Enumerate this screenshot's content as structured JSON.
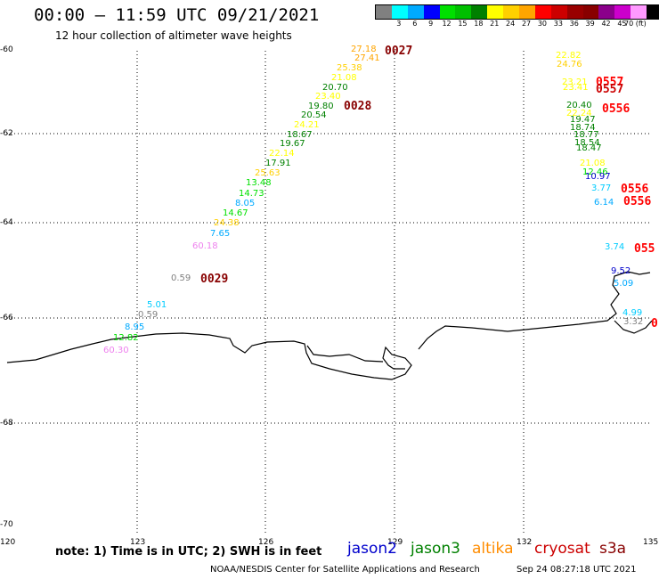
{
  "header": {
    "title": "00:00 – 11:59 UTC 09/21/2021",
    "subtitle": "12 hour collection of altimeter wave heights"
  },
  "legend": {
    "colors": [
      "#808080",
      "#00ffff",
      "#00aaff",
      "#0000ff",
      "#00e000",
      "#00c000",
      "#008000",
      "#ffff00",
      "#ffd000",
      "#ffa500",
      "#ff0000",
      "#cc0000",
      "#990000",
      "#880000",
      "#8b008b",
      "#cc00cc",
      "#ff99ff",
      "#000000"
    ],
    "labels": [
      "3",
      "6",
      "9",
      "12",
      "15",
      "18",
      "21",
      "24",
      "27",
      "30",
      "33",
      "36",
      "39",
      "42",
      "45",
      "70 (ft)"
    ]
  },
  "axes": {
    "y_ticks": [
      "-60",
      "-62",
      "-64",
      "-66",
      "-68",
      "-70"
    ],
    "x_ticks": [
      "120",
      "123",
      "126",
      "129",
      "132",
      "135"
    ]
  },
  "footer": {
    "note": "note: 1) Time is in UTC; 2) SWH is in feet",
    "satellites": [
      {
        "name": "jason2",
        "color": "#0000cc"
      },
      {
        "name": "jason3",
        "color": "#008000"
      },
      {
        "name": "altika",
        "color": "#ff8c00"
      },
      {
        "name": "cryosat",
        "color": "#cc0000"
      },
      {
        "name": "s3a",
        "color": "#880000"
      }
    ],
    "credit": "NOAA/NESDIS Center for Satellite Applications and Research",
    "generated": "Sep 24 08:27:18 UTC 2021"
  },
  "wave_heights": [
    {
      "text": "27.18",
      "color": "#ffa500"
    },
    {
      "text": "27.41",
      "color": "#ffa500"
    },
    {
      "text": "25.38",
      "color": "#ffd000"
    },
    {
      "text": "21.08",
      "color": "#ffff00"
    },
    {
      "text": "20.70",
      "color": "#008000"
    },
    {
      "text": "23.40",
      "color": "#ffff00"
    },
    {
      "text": "19.80",
      "color": "#008000"
    },
    {
      "text": "20.54",
      "color": "#008000"
    },
    {
      "text": "18.67",
      "color": "#008000"
    },
    {
      "text": "24.21",
      "color": "#ffff00"
    },
    {
      "text": "19.67",
      "color": "#008000"
    },
    {
      "text": "22.14",
      "color": "#ffff00"
    },
    {
      "text": "17.91",
      "color": "#008000"
    },
    {
      "text": "25.63",
      "color": "#ffd000"
    },
    {
      "text": "13.48",
      "color": "#00e000"
    },
    {
      "text": "14.73",
      "color": "#00e000"
    },
    {
      "text": "8.05",
      "color": "#00aaff"
    },
    {
      "text": "14.67",
      "color": "#00e000"
    },
    {
      "text": "24.38",
      "color": "#ffd000"
    },
    {
      "text": "7.65",
      "color": "#00aaff"
    },
    {
      "text": "60.18",
      "color": "#ee82ee"
    },
    {
      "text": "0.59",
      "color": "#808080"
    },
    {
      "text": "5.01",
      "color": "#00ccff"
    },
    {
      "text": "0.59",
      "color": "#808080"
    },
    {
      "text": "8.95",
      "color": "#00aaff"
    },
    {
      "text": "12.82",
      "color": "#00e000"
    },
    {
      "text": "60.30",
      "color": "#ee82ee"
    },
    {
      "text": "22.82",
      "color": "#ffff00"
    },
    {
      "text": "24.76",
      "color": "#ffd000"
    },
    {
      "text": "23.21",
      "color": "#ffff00"
    },
    {
      "text": "23.41",
      "color": "#ffff00"
    },
    {
      "text": "20.40",
      "color": "#008000"
    },
    {
      "text": "22.24",
      "color": "#ffff00"
    },
    {
      "text": "19.47",
      "color": "#008000"
    },
    {
      "text": "18.74",
      "color": "#008000"
    },
    {
      "text": "18.77",
      "color": "#008000"
    },
    {
      "text": "18.54",
      "color": "#008000"
    },
    {
      "text": "18.47",
      "color": "#008000"
    },
    {
      "text": "21.08",
      "color": "#ffff00"
    },
    {
      "text": "12.46",
      "color": "#00e000"
    },
    {
      "text": "10.97",
      "color": "#0000cc"
    },
    {
      "text": "3.77",
      "color": "#00ccff"
    },
    {
      "text": "6.14",
      "color": "#00aaff"
    },
    {
      "text": "3.74",
      "color": "#00ccff"
    },
    {
      "text": "9.52",
      "color": "#0000cc"
    },
    {
      "text": "5.09",
      "color": "#00aaff"
    },
    {
      "text": "4.99",
      "color": "#00ccff"
    },
    {
      "text": "3.32",
      "color": "#808080"
    }
  ],
  "pass_labels": [
    {
      "text": "0027",
      "color": "#880000"
    },
    {
      "text": "0028",
      "color": "#880000"
    },
    {
      "text": "0029",
      "color": "#880000"
    },
    {
      "text": "0557",
      "color": "#ff0000"
    },
    {
      "text": "0557",
      "color": "#cc0000"
    },
    {
      "text": "0556",
      "color": "#ff0000"
    },
    {
      "text": "0556",
      "color": "#ff0000"
    },
    {
      "text": "0556",
      "color": "#ff0000"
    },
    {
      "text": "055",
      "color": "#ff0000"
    },
    {
      "text": "0",
      "color": "#ff0000"
    }
  ]
}
